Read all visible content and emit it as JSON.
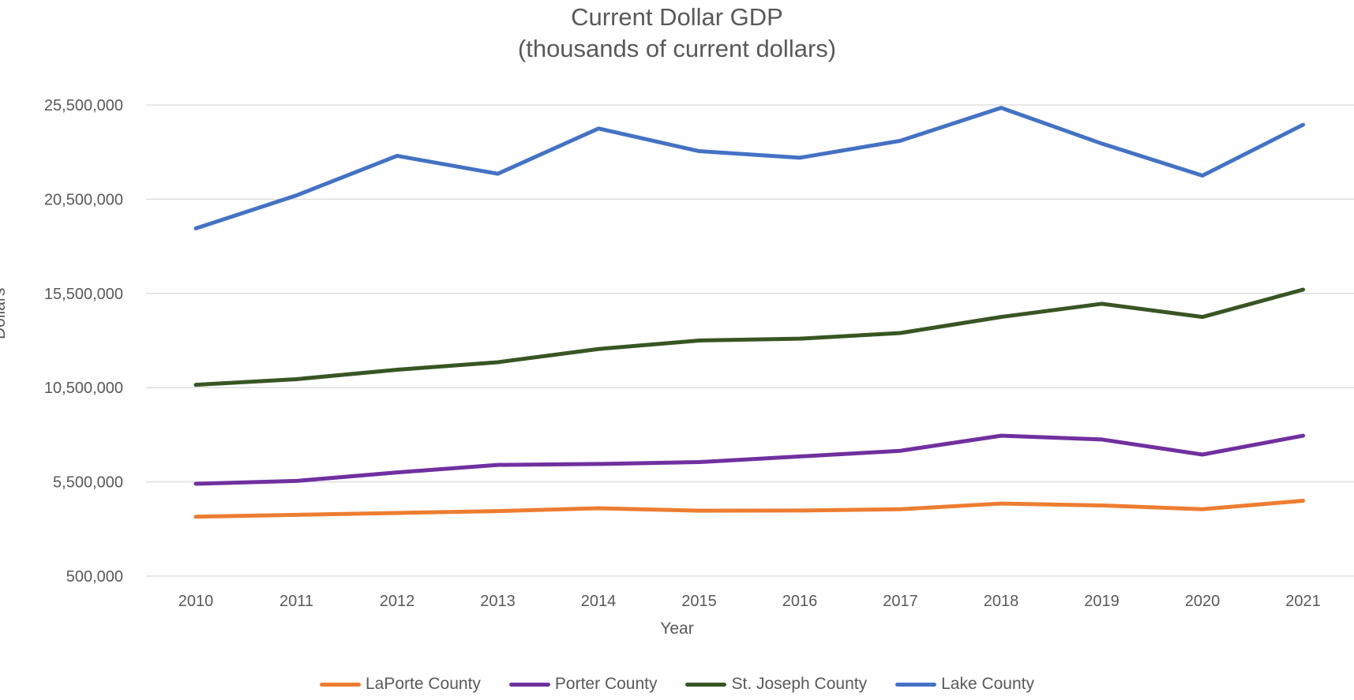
{
  "chart_data": {
    "type": "line",
    "title": "Current Dollar GDP",
    "subtitle": "(thousands of current dollars)",
    "xlabel": "Year",
    "ylabel": "Dollars",
    "x": [
      "2010",
      "2011",
      "2012",
      "2013",
      "2014",
      "2015",
      "2016",
      "2017",
      "2018",
      "2019",
      "2020",
      "2021"
    ],
    "ylim": [
      500000,
      25500000
    ],
    "yticks": [
      500000,
      5500000,
      10500000,
      15500000,
      20500000,
      25500000
    ],
    "ytick_labels": [
      "500,000",
      "5,500,000",
      "10,500,000",
      "15,500,000",
      "20,500,000",
      "25,500,000"
    ],
    "grid": true,
    "legend_position": "bottom",
    "series": [
      {
        "name": "LaPorte County",
        "color": "#ED7D31",
        "values": [
          3650000,
          3750000,
          3850000,
          3950000,
          4100000,
          3970000,
          3980000,
          4050000,
          4350000,
          4250000,
          4050000,
          4500000
        ]
      },
      {
        "name": "Porter County",
        "color": "#7030A0",
        "values": [
          5400000,
          5550000,
          6000000,
          6400000,
          6450000,
          6550000,
          6850000,
          7150000,
          7950000,
          7750000,
          6950000,
          7950000
        ]
      },
      {
        "name": "St. Joseph County",
        "color": "#375623",
        "values": [
          10650000,
          10950000,
          11450000,
          11850000,
          12550000,
          13000000,
          13100000,
          13400000,
          14250000,
          14950000,
          14250000,
          15700000
        ]
      },
      {
        "name": "Lake County",
        "color": "#4472C4",
        "values": [
          18950000,
          20700000,
          22800000,
          21850000,
          24250000,
          23050000,
          22700000,
          23600000,
          25350000,
          23450000,
          21750000,
          24450000
        ]
      }
    ]
  }
}
